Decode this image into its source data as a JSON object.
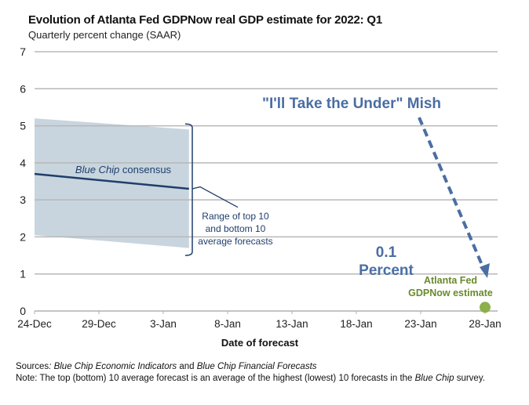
{
  "chart_data": {
    "type": "line",
    "title": "Evolution of Atlanta Fed GDPNow real GDP estimate for 2022: Q1",
    "subtitle": "Quarterly percent change (SAAR)",
    "xlabel": "Date of forecast",
    "ylabel": "",
    "ylim": [
      0,
      7
    ],
    "yticks": [
      0,
      1,
      2,
      3,
      4,
      5,
      6,
      7
    ],
    "xlim_days": [
      0,
      35
    ],
    "xticks": [
      {
        "label": "24-Dec",
        "day": 0
      },
      {
        "label": "29-Dec",
        "day": 5
      },
      {
        "label": "3-Jan",
        "day": 10
      },
      {
        "label": "8-Jan",
        "day": 15
      },
      {
        "label": "13-Jan",
        "day": 20
      },
      {
        "label": "18-Jan",
        "day": 25
      },
      {
        "label": "23-Jan",
        "day": 30
      },
      {
        "label": "28-Jan",
        "day": 35
      }
    ],
    "grid": true,
    "series": [
      {
        "name": "Blue Chip consensus",
        "kind": "line",
        "color": "#1f3e6b",
        "points": [
          {
            "day": 0,
            "value": 3.7
          },
          {
            "day": 12,
            "value": 3.3
          }
        ]
      },
      {
        "name": "Range of top 10 and bottom 10 average forecasts",
        "kind": "band",
        "color": "#c5d3dc",
        "upper": [
          {
            "day": 0,
            "value": 5.2
          },
          {
            "day": 12,
            "value": 4.9
          }
        ],
        "lower": [
          {
            "day": 0,
            "value": 2.05
          },
          {
            "day": 12,
            "value": 1.7
          }
        ]
      },
      {
        "name": "Atlanta Fed GDPNow estimate",
        "kind": "point",
        "color": "#8cb04a",
        "points": [
          {
            "day": 35,
            "value": 0.1
          }
        ]
      }
    ],
    "annotations": {
      "consensus_label_prefix": "Blue Chip",
      "consensus_label_suffix": " consensus",
      "range_label": [
        "Range of top 10",
        "and bottom 10",
        "average forecasts"
      ],
      "mish_label": "\"I'll Take the Under\" Mish",
      "percent_value": "0.1",
      "percent_word": "Percent",
      "gdpnow_label": [
        "Atlanta Fed",
        "GDPNow estimate"
      ],
      "arrow": {
        "from": {
          "day": 30,
          "value": 5.3
        },
        "to": {
          "day": 35.2,
          "value": 0.9
        },
        "style": "dashed",
        "color": "#4a6ea3"
      }
    }
  },
  "footer": {
    "sources_label": "Sources",
    "sources_sep": ": ",
    "sources_item1": "Blue Chip Economic Indicators",
    "sources_and": " and ",
    "sources_item2": "Blue Chip Financial Forecasts",
    "note_label": "Note",
    "note_text1": ": The top (bottom) 10 average forecast is an average of the highest (lowest) 10 forecasts in the ",
    "note_italic": "Blue Chip",
    "note_text2": " survey."
  }
}
